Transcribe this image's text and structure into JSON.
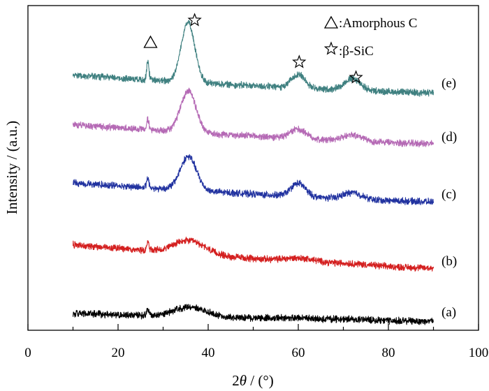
{
  "chart_data": {
    "type": "line",
    "xlabel": "2θ / (°)",
    "xlabel_parts": {
      "pre": "2",
      "theta": "θ",
      "post": " / (°)"
    },
    "ylabel": "Intensity / (a.u.)",
    "xlim": [
      0,
      100
    ],
    "x_ticks": [
      0,
      20,
      40,
      60,
      80,
      100
    ],
    "x_tick_labels": [
      "0",
      "20",
      "40",
      "60",
      "80",
      "100"
    ],
    "x_minor_step": 10,
    "y_ticks_shown": false,
    "grid": false,
    "legend": {
      "placement": "top-right",
      "entries": [
        {
          "symbol": "triangle",
          "text": ":Amorphous C"
        },
        {
          "symbol": "star",
          "text": ":β-SiC"
        }
      ]
    },
    "series": [
      {
        "name": "(a)",
        "color": "#000000",
        "x_range": [
          10,
          90
        ],
        "end_level": 0.38,
        "baseline": 0.64,
        "slope": 0.42,
        "noise": 0.09,
        "peaks": [
          {
            "x": 26.6,
            "height": 0.22,
            "width": 0.25
          },
          {
            "x": 36,
            "height": 0.33,
            "width": 3.5
          },
          {
            "x": 60,
            "height": 0.04,
            "width": 3.5
          },
          {
            "x": 72,
            "height": 0.03,
            "width": 3.5
          }
        ]
      },
      {
        "name": "(b)",
        "color": "#d42020",
        "x_range": [
          10,
          90
        ],
        "end_level": 0.55,
        "baseline": 1.35,
        "slope": 0.78,
        "noise": 0.09,
        "peaks": [
          {
            "x": 26.6,
            "height": 0.28,
            "width": 0.25
          },
          {
            "x": 35.8,
            "height": 0.45,
            "width": 3.5
          },
          {
            "x": 60.5,
            "height": 0.12,
            "width": 3.5
          },
          {
            "x": 72,
            "height": 0.04,
            "width": 3.5
          }
        ]
      },
      {
        "name": "(c)",
        "color": "#2233a0",
        "x_range": [
          10,
          90
        ],
        "end_level": 0.5,
        "baseline": 1.15,
        "slope": 0.62,
        "noise": 0.09,
        "peaks": [
          {
            "x": 26.6,
            "height": 0.33,
            "width": 0.25
          },
          {
            "x": 35.6,
            "height": 1.15,
            "width": 1.8
          },
          {
            "x": 60,
            "height": 0.45,
            "width": 1.6
          },
          {
            "x": 72,
            "height": 0.22,
            "width": 2.0
          }
        ]
      },
      {
        "name": "(d)",
        "color": "#b56ab5",
        "x_range": [
          10,
          90
        ],
        "end_level": 0.5,
        "baseline": 1.15,
        "slope": 0.62,
        "noise": 0.09,
        "peaks": [
          {
            "x": 26.6,
            "height": 0.38,
            "width": 0.25
          },
          {
            "x": 35.6,
            "height": 1.42,
            "width": 1.7
          },
          {
            "x": 60,
            "height": 0.32,
            "width": 1.7
          },
          {
            "x": 72,
            "height": 0.22,
            "width": 2.0
          }
        ]
      },
      {
        "name": "(e)",
        "color": "#3f8080",
        "x_range": [
          10,
          90
        ],
        "end_level": 0.2,
        "baseline": 0.8,
        "slope": 0.45,
        "noise": 0.09,
        "peaks": [
          {
            "x": 26.6,
            "height": 0.65,
            "width": 0.25
          },
          {
            "x": 35.5,
            "height": 2.05,
            "width": 1.5
          },
          {
            "x": 60,
            "height": 0.47,
            "width": 1.5
          },
          {
            "x": 72,
            "height": 0.4,
            "width": 1.8
          }
        ]
      }
    ],
    "annotations": [
      {
        "symbol": "triangle",
        "x": 27.2,
        "label": "Amorphous C"
      },
      {
        "symbol": "star",
        "x": 37.0,
        "label": "β-SiC"
      },
      {
        "symbol": "star",
        "x": 60.2,
        "label": "β-SiC"
      },
      {
        "symbol": "star",
        "x": 72.8,
        "label": "β-SiC"
      }
    ]
  }
}
